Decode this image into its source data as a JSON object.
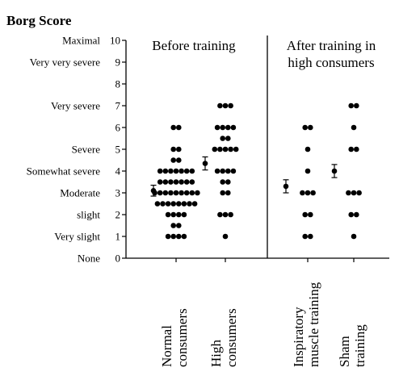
{
  "chart_data": {
    "type": "scatter",
    "title": "Borg Score",
    "ylim": [
      0,
      10
    ],
    "y_ticks": [
      0,
      1,
      2,
      3,
      4,
      5,
      6,
      7,
      8,
      9,
      10
    ],
    "y_tick_labels": [
      "0",
      "1",
      "2",
      "3",
      "4",
      "5",
      "6",
      "7",
      "8",
      "9",
      "10"
    ],
    "y_descriptors": [
      {
        "value": 10,
        "label": "Maximal"
      },
      {
        "value": 9,
        "label": "Very very severe"
      },
      {
        "value": 7,
        "label": "Very severe"
      },
      {
        "value": 5,
        "label": "Severe"
      },
      {
        "value": 4,
        "label": "Somewhat severe"
      },
      {
        "value": 3,
        "label": "Moderate"
      },
      {
        "value": 2,
        "label": "slight"
      },
      {
        "value": 1,
        "label": "Very slight"
      },
      {
        "value": 0,
        "label": "None"
      }
    ],
    "panels": [
      {
        "label": "Before training",
        "groups": [
          "Normal consumers",
          "High consumers"
        ]
      },
      {
        "label": "After training in high consumers",
        "groups": [
          "Inspiratory muscle training",
          "Sham training"
        ]
      }
    ],
    "groups": [
      {
        "name": "Normal consumers",
        "label_lines": [
          "Normal",
          "consumers"
        ],
        "points": [
          {
            "y": 6,
            "n": 2
          },
          {
            "y": 5,
            "n": 2
          },
          {
            "y": 4.5,
            "n": 2
          },
          {
            "y": 4,
            "n": 7
          },
          {
            "y": 3.5,
            "n": 7
          },
          {
            "y": 3,
            "n": 9
          },
          {
            "y": 2.5,
            "n": 8
          },
          {
            "y": 2,
            "n": 4
          },
          {
            "y": 1.5,
            "n": 2
          },
          {
            "y": 1,
            "n": 4
          }
        ],
        "summary": {
          "mean": 3.1,
          "lower": 2.85,
          "upper": 3.35
        }
      },
      {
        "name": "High consumers",
        "label_lines": [
          "High",
          "consumers"
        ],
        "points": [
          {
            "y": 7,
            "n": 3
          },
          {
            "y": 6,
            "n": 4
          },
          {
            "y": 5.5,
            "n": 2
          },
          {
            "y": 5,
            "n": 5
          },
          {
            "y": 4,
            "n": 4
          },
          {
            "y": 3.5,
            "n": 2
          },
          {
            "y": 3,
            "n": 2
          },
          {
            "y": 2,
            "n": 3
          },
          {
            "y": 1,
            "n": 1
          }
        ],
        "summary": {
          "mean": 4.35,
          "lower": 4.05,
          "upper": 4.65
        }
      },
      {
        "name": "Inspiratory muscle training",
        "label_lines": [
          "Inspiratory",
          "muscle training"
        ],
        "points": [
          {
            "y": 6,
            "n": 2
          },
          {
            "y": 5,
            "n": 1
          },
          {
            "y": 4,
            "n": 1
          },
          {
            "y": 3,
            "n": 3
          },
          {
            "y": 2,
            "n": 2
          },
          {
            "y": 1,
            "n": 2
          }
        ],
        "summary": {
          "mean": 3.3,
          "lower": 3.0,
          "upper": 3.6
        }
      },
      {
        "name": "Sham training",
        "label_lines": [
          "Sham",
          "training"
        ],
        "points": [
          {
            "y": 7,
            "n": 2
          },
          {
            "y": 6,
            "n": 1
          },
          {
            "y": 5,
            "n": 2
          },
          {
            "y": 3,
            "n": 3
          },
          {
            "y": 2,
            "n": 2
          },
          {
            "y": 1,
            "n": 1
          }
        ],
        "summary": {
          "mean": 4.0,
          "lower": 3.7,
          "upper": 4.3
        }
      }
    ]
  }
}
